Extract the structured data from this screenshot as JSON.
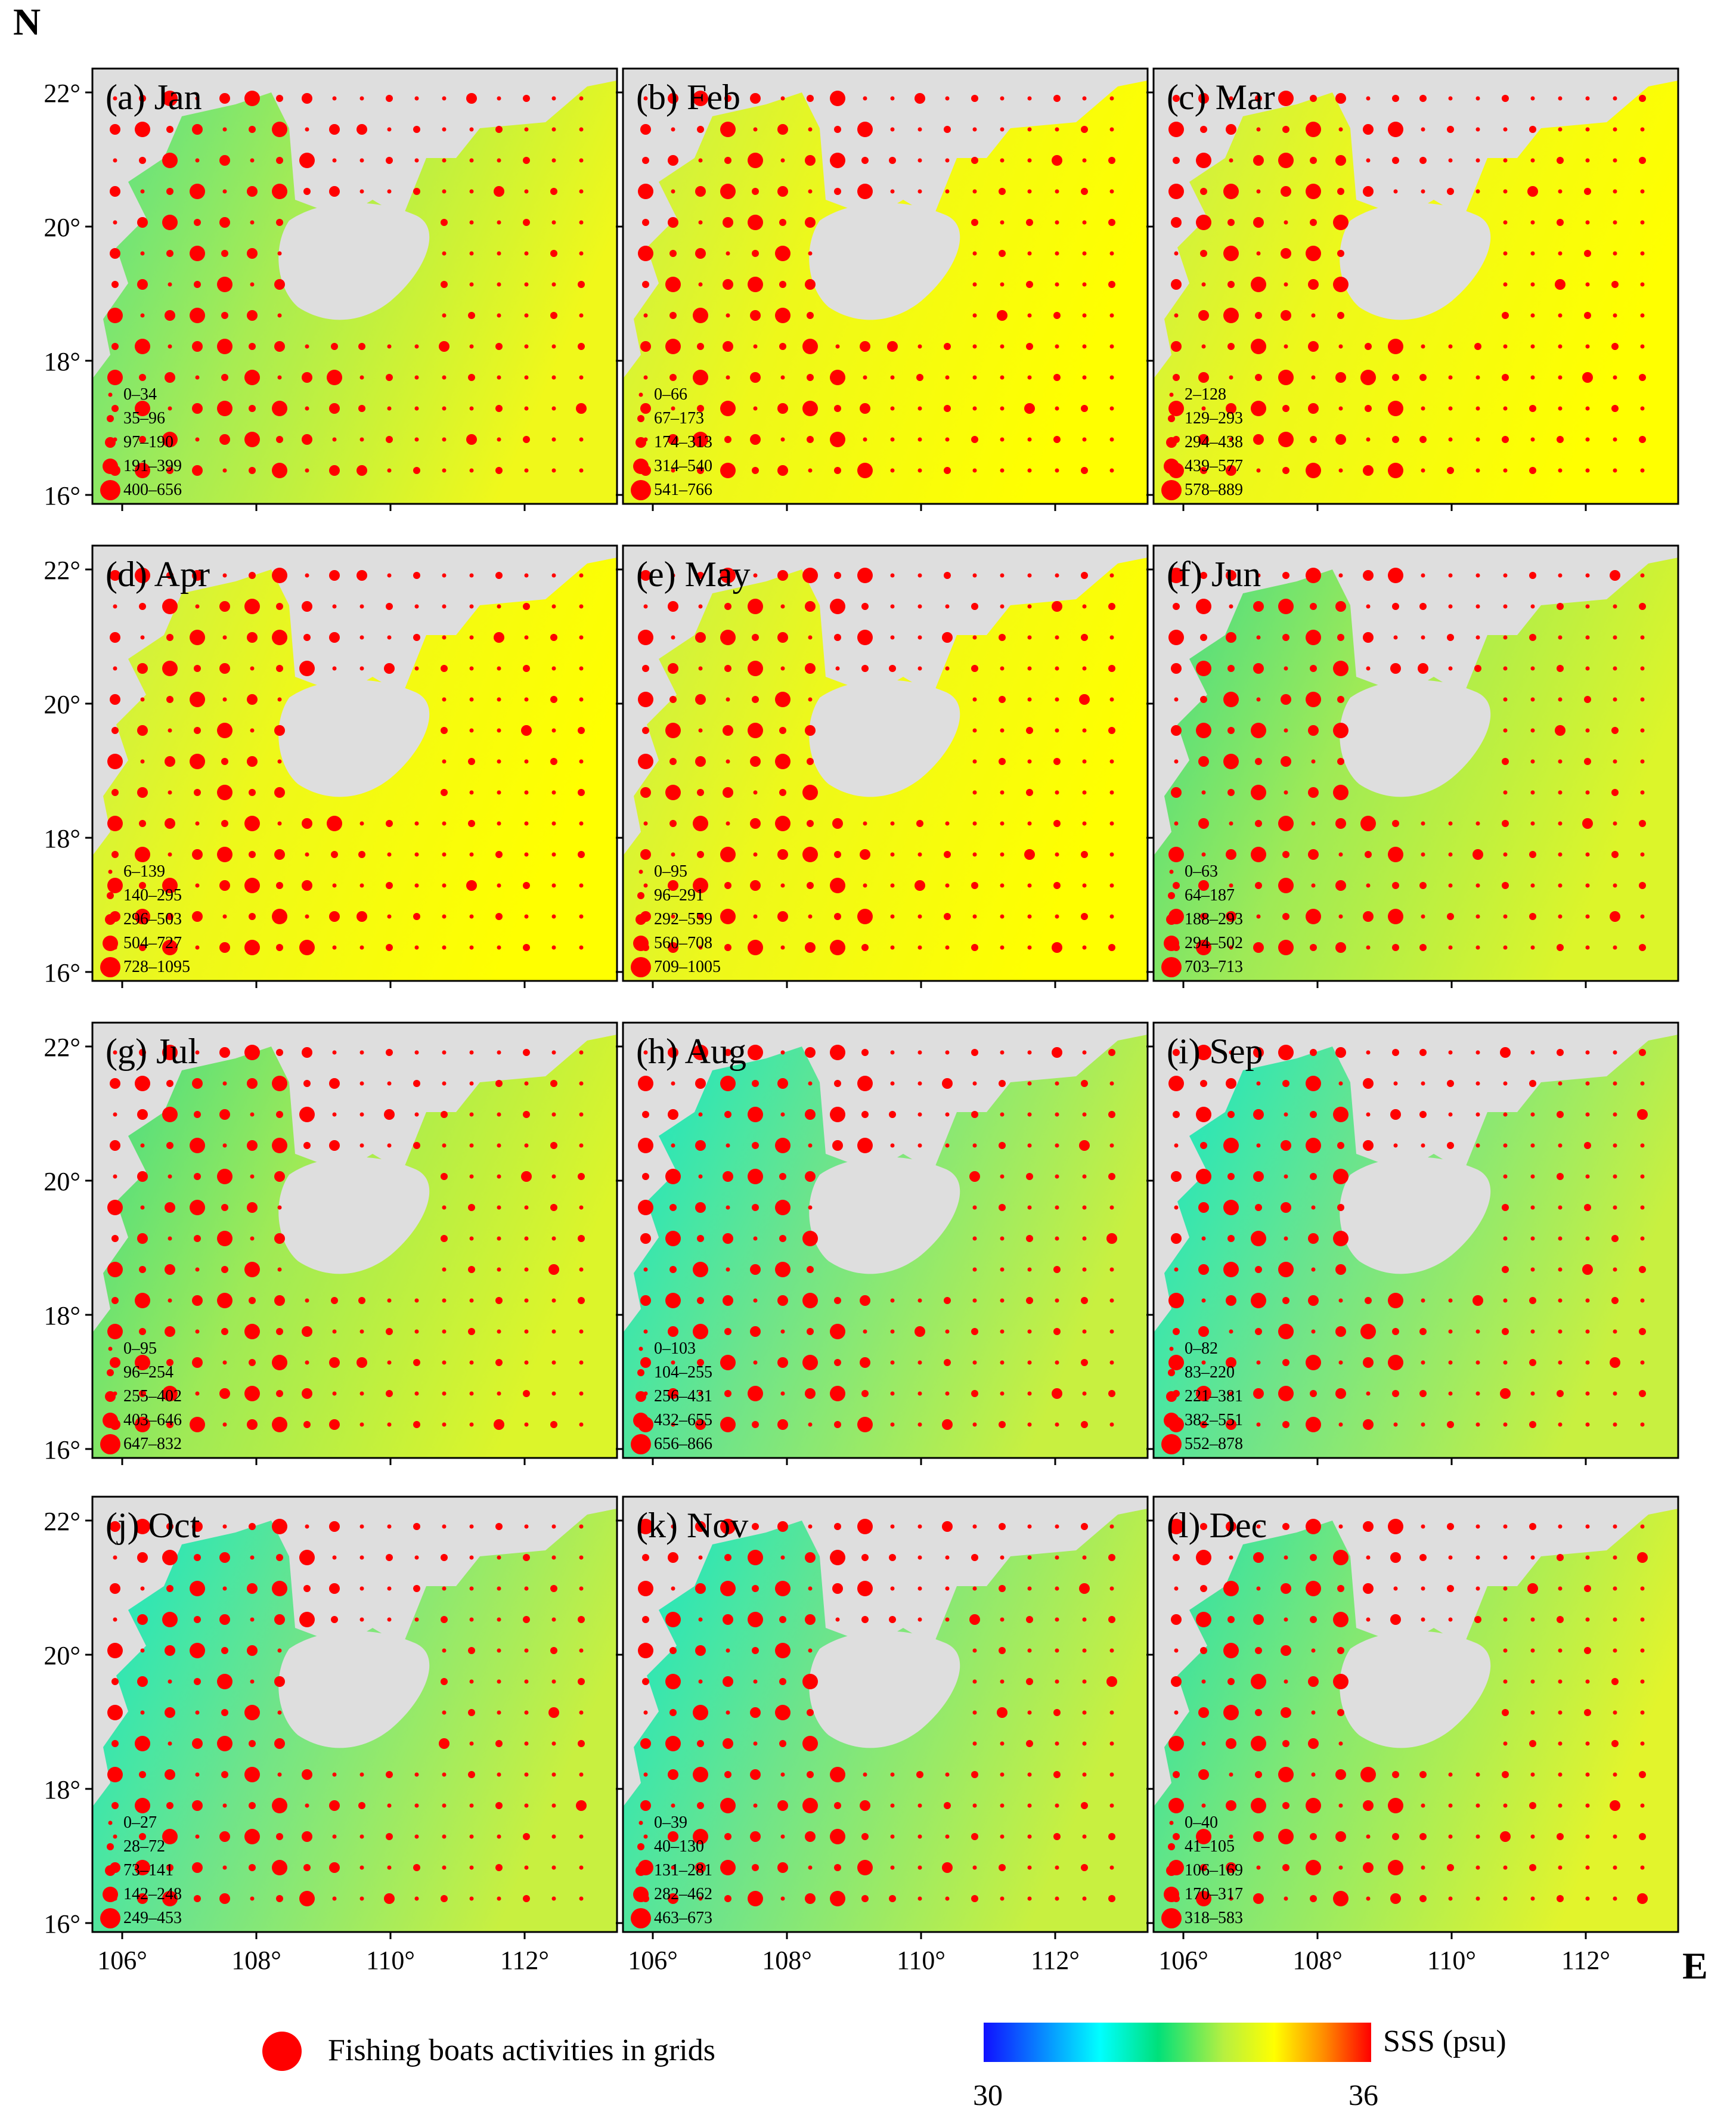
{
  "figure": {
    "north_label": "N",
    "east_label": "E",
    "lat_ticks": [
      "22°",
      "20°",
      "18°",
      "16°"
    ],
    "lon_ticks": [
      "106°",
      "108°",
      "110°",
      "112°"
    ]
  },
  "panels": [
    {
      "label": "(a) Jan",
      "legend": [
        "0–34",
        "35–96",
        "97–190",
        "191–399",
        "400–656"
      ],
      "salinity": "mixed"
    },
    {
      "label": "(b) Feb",
      "legend": [
        "0–66",
        "67–173",
        "174–313",
        "314–540",
        "541–766"
      ],
      "salinity": "high"
    },
    {
      "label": "(c) Mar",
      "legend": [
        "2–128",
        "129–293",
        "294–438",
        "439–577",
        "578–889"
      ],
      "salinity": "high"
    },
    {
      "label": "(d) Apr",
      "legend": [
        "6–139",
        "140–295",
        "296–503",
        "504–727",
        "728–1095"
      ],
      "salinity": "high"
    },
    {
      "label": "(e) May",
      "legend": [
        "0–95",
        "96–291",
        "292–559",
        "560–708",
        "709–1005"
      ],
      "salinity": "high"
    },
    {
      "label": "(f) Jun",
      "legend": [
        "0–63",
        "64–187",
        "188–293",
        "294–502",
        "703–713"
      ],
      "salinity": "mid"
    },
    {
      "label": "(g) Jul",
      "legend": [
        "0–95",
        "96–254",
        "255–402",
        "403–646",
        "647–832"
      ],
      "salinity": "mid"
    },
    {
      "label": "(h) Aug",
      "legend": [
        "0–103",
        "104–255",
        "256–431",
        "432–655",
        "656–866"
      ],
      "salinity": "low"
    },
    {
      "label": "(i) Sep",
      "legend": [
        "0–82",
        "83–220",
        "221–381",
        "382–551",
        "552–878"
      ],
      "salinity": "low"
    },
    {
      "label": "(j) Oct",
      "legend": [
        "0–27",
        "28–72",
        "73–141",
        "142–248",
        "249–453"
      ],
      "salinity": "low"
    },
    {
      "label": "(k) Nov",
      "legend": [
        "0–39",
        "40–130",
        "131–281",
        "282–462",
        "463–673"
      ],
      "salinity": "low"
    },
    {
      "label": "(l) Dec",
      "legend": [
        "0–40",
        "41–105",
        "106–169",
        "170–317",
        "318–583"
      ],
      "salinity": "lowmid"
    }
  ],
  "legend": {
    "dot_label": "Fishing boats activities  in grids",
    "colorbar_label": "SSS (psu)",
    "colorbar_min": "30",
    "colorbar_max": "36"
  },
  "colors": {
    "dot": "#ff0000",
    "land": "#dedede",
    "frame": "#000000"
  }
}
